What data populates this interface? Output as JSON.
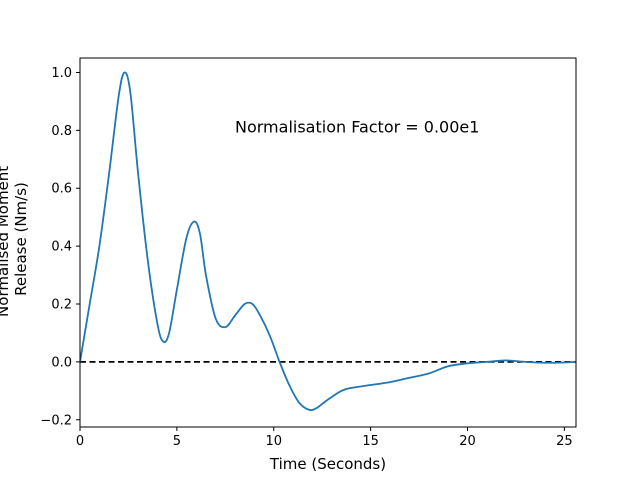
{
  "chart_data": {
    "type": "line",
    "title": "",
    "xlabel": "Time (Seconds)",
    "ylabel_lines": [
      "Normalised Moment",
      "Release (Nm/s)"
    ],
    "xlim": [
      0,
      25.6
    ],
    "ylim": [
      -0.225,
      1.05
    ],
    "xticks": [
      0,
      5,
      10,
      15,
      20,
      25
    ],
    "yticks": [
      -0.2,
      0.0,
      0.2,
      0.4,
      0.6,
      0.8,
      1.0
    ],
    "xtick_labels": [
      "0",
      "5",
      "10",
      "15",
      "20",
      "25"
    ],
    "ytick_labels": [
      "−0.2",
      "0.0",
      "0.2",
      "0.4",
      "0.6",
      "0.8",
      "1.0"
    ],
    "grid": false,
    "annotation": {
      "text": "Normalisation Factor = 0.00e1",
      "x": 8.0,
      "y": 0.81
    },
    "reference_line": {
      "y": 0.0,
      "style": "dashed",
      "color": "#000000"
    },
    "series": [
      {
        "color": "#1f77b4",
        "x": [
          0,
          0.5,
          1.0,
          1.5,
          2.0,
          2.3,
          2.6,
          3.0,
          3.5,
          4.0,
          4.3,
          4.6,
          5.0,
          5.5,
          5.9,
          6.2,
          6.5,
          7.0,
          7.5,
          8.0,
          8.5,
          8.9,
          9.3,
          9.8,
          10.3,
          10.8,
          11.3,
          11.8,
          12.2,
          12.8,
          13.5,
          14.0,
          15.0,
          16.0,
          17.0,
          18.0,
          19.0,
          20.0,
          21.0,
          22.0,
          23.0,
          24.0,
          25.0,
          25.6
        ],
        "y": [
          0.0,
          0.2,
          0.4,
          0.65,
          0.92,
          1.0,
          0.93,
          0.65,
          0.35,
          0.13,
          0.07,
          0.1,
          0.25,
          0.43,
          0.485,
          0.44,
          0.3,
          0.15,
          0.12,
          0.16,
          0.2,
          0.2,
          0.16,
          0.09,
          0.0,
          -0.08,
          -0.14,
          -0.165,
          -0.16,
          -0.13,
          -0.1,
          -0.09,
          -0.08,
          -0.07,
          -0.055,
          -0.04,
          -0.015,
          -0.005,
          0.0,
          0.005,
          0.0,
          -0.003,
          -0.002,
          0.0
        ]
      }
    ]
  }
}
